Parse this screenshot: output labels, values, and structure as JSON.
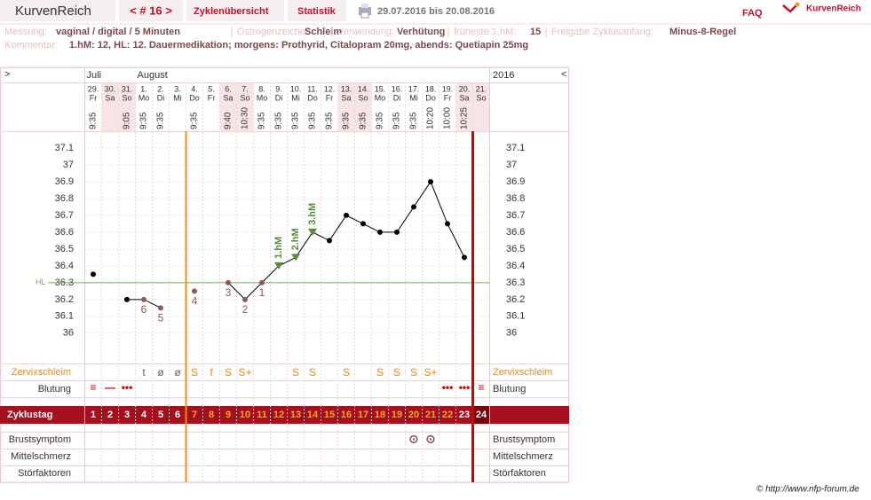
{
  "header": {
    "brand": "KurvenReich",
    "cycle_nav": "< # 16 >",
    "tabs": [
      "Zyklenübersicht",
      "Statistik"
    ],
    "date_range": "29.07.2016 bis 20.08.2016",
    "faq": "FAQ",
    "logo": "KurvenReich"
  },
  "info": {
    "items": [
      {
        "label": "Messung:",
        "value": "vaginal / digital / 5 Minuten"
      },
      {
        "label": "Östrogenzeichen:",
        "value": "Schleim"
      },
      {
        "label": "Verwendung:",
        "value": "Verhütung"
      },
      {
        "label": "früheste 1.hM:",
        "value": "15"
      },
      {
        "label": "Freigabe Zyklusanfang:",
        "value": "Minus-8-Regel"
      }
    ],
    "comment_label": "Kommentar:",
    "comment": "1.hM: 12, HL: 12. Dauermedikation; morgens: Prothyrid, Citalopram 20mg, abends: Quetiapin 25mg"
  },
  "chart_data": {
    "type": "line",
    "nav_left": ">",
    "nav_right": "<",
    "year_label": "2016",
    "month_labels": [
      "Juli",
      null,
      null,
      "August",
      null,
      null,
      null,
      null,
      null,
      null,
      null,
      null,
      null,
      null,
      null,
      null,
      null,
      null,
      null,
      null,
      null,
      null,
      null,
      null
    ],
    "categories": [
      "29.",
      "30.",
      "31.",
      "1.",
      "2.",
      "3.",
      "4.",
      "5.",
      "6.",
      "7.",
      "8.",
      "9.",
      "10.",
      "11.",
      "12.",
      "13.",
      "14.",
      "15.",
      "16.",
      "17.",
      "18.",
      "19.",
      "20.",
      "21."
    ],
    "weekdays": [
      "Fr",
      "Sa",
      "So",
      "Mo",
      "Di",
      "Mi",
      "Do",
      "Fr",
      "Sa",
      "So",
      "Mo",
      "Di",
      "Mi",
      "Do",
      "Fr",
      "Sa",
      "So",
      "Mo",
      "Di",
      "Mi",
      "Do",
      "Fr",
      "Sa",
      "So"
    ],
    "weekend": [
      false,
      true,
      true,
      false,
      false,
      false,
      false,
      false,
      true,
      true,
      false,
      false,
      false,
      false,
      false,
      true,
      true,
      false,
      false,
      false,
      false,
      false,
      true,
      true
    ],
    "times": [
      "9:35",
      null,
      "9:05",
      "9:35",
      "9:35",
      null,
      "9:35",
      null,
      "9:40",
      "10:30",
      "9:35",
      "9:35",
      "9:35",
      "9:35",
      "9:35",
      "9:35",
      "9:35",
      "9:35",
      "9:35",
      "9:35",
      "10:20",
      "10:00",
      "10:25",
      null
    ],
    "values": [
      36.35,
      null,
      36.2,
      36.2,
      36.15,
      null,
      36.25,
      null,
      36.3,
      36.2,
      36.3,
      36.4,
      36.45,
      36.6,
      36.55,
      36.7,
      36.65,
      36.6,
      36.6,
      36.75,
      36.9,
      36.65,
      36.45,
      null
    ],
    "color": "#000000",
    "marker_colors": [
      "#000000",
      null,
      "#000000",
      "#8b5a5a",
      "#8b5a5a",
      null,
      "#8b5a5a",
      null,
      "#8b5a5a",
      "#8b5a5a",
      "#8b5a5a",
      "#5a8a3a",
      "#5a8a3a",
      "#5a8a3a",
      "#000000",
      "#000000",
      "#000000",
      "#000000",
      "#000000",
      "#000000",
      "#000000",
      "#000000",
      "#000000",
      null
    ],
    "marker_shapes": [
      "circle",
      null,
      "circle",
      "circle",
      "circle",
      null,
      "circle",
      null,
      "circle",
      "circle",
      "circle",
      "triangle",
      "triangle",
      "triangle",
      "circle",
      "circle",
      "circle",
      "circle",
      "circle",
      "circle",
      "circle",
      "circle",
      "circle",
      null
    ],
    "point_labels": [
      null,
      null,
      null,
      "6",
      "5",
      null,
      "4",
      null,
      "3",
      "2",
      "1",
      "1.hM",
      "2.hM",
      "3.hM",
      null,
      null,
      null,
      null,
      null,
      null,
      null,
      null,
      null,
      null
    ],
    "ylim": [
      35.82,
      37.2
    ],
    "yticks": [
      36,
      36.1,
      36.2,
      36.3,
      36.4,
      36.5,
      36.6,
      36.7,
      36.8,
      36.9,
      37,
      37.1
    ],
    "grid": true,
    "hl": {
      "label": "HL",
      "value": 36.3,
      "color": "#7aa84a"
    },
    "vlines": [
      {
        "after": 5,
        "color": "#f0900a"
      },
      {
        "after": 22,
        "color": "#d40000"
      }
    ],
    "cervix": {
      "label": "Zervixschleim",
      "values": [
        null,
        null,
        null,
        "t",
        "ø",
        "ø",
        "S",
        "f",
        "S",
        "S+",
        null,
        null,
        "S",
        "S",
        null,
        "S",
        null,
        "S",
        "S",
        "S",
        "S+",
        null,
        null,
        null
      ]
    },
    "bleeding": {
      "label": "Blutung",
      "values": [
        "≡",
        "—",
        "•••",
        null,
        null,
        null,
        null,
        null,
        null,
        null,
        null,
        null,
        null,
        null,
        null,
        null,
        null,
        null,
        null,
        null,
        null,
        "•••",
        "•••",
        "≡"
      ]
    },
    "cycle_day": {
      "label": "Zyklustag",
      "values": [
        1,
        2,
        3,
        4,
        5,
        6,
        7,
        8,
        9,
        10,
        11,
        12,
        13,
        14,
        15,
        16,
        17,
        18,
        19,
        20,
        21,
        22,
        23,
        24
      ],
      "colors": [
        "#ffffff",
        "#ffffff",
        "#ffffff",
        "#ffffff",
        "#ffffff",
        "#ffffff",
        "#f5a623",
        "#f5a623",
        "#f5a623",
        "#f5a623",
        "#f5a623",
        "#f5a623",
        "#f5a623",
        "#f5a623",
        "#f5a623",
        "#f5a623",
        "#f5a623",
        "#f5a623",
        "#f5a623",
        "#f5a623",
        "#f5a623",
        "#f5a623",
        "#ffffff",
        "#ffffff"
      ]
    },
    "symptoms": [
      {
        "label": "Brustsymptom",
        "values": [
          null,
          null,
          null,
          null,
          null,
          null,
          null,
          null,
          null,
          null,
          null,
          null,
          null,
          null,
          null,
          null,
          null,
          null,
          null,
          "⊙",
          "⊙",
          null,
          null,
          null
        ]
      },
      {
        "label": "Mittelschmerz",
        "values": [
          null,
          null,
          null,
          null,
          null,
          null,
          null,
          null,
          null,
          null,
          null,
          null,
          null,
          null,
          null,
          null,
          null,
          null,
          null,
          null,
          null,
          null,
          null,
          null
        ]
      },
      {
        "label": "Störfaktoren",
        "values": [
          null,
          null,
          null,
          null,
          null,
          null,
          null,
          null,
          null,
          null,
          null,
          null,
          null,
          null,
          null,
          null,
          null,
          null,
          null,
          null,
          null,
          null,
          null,
          null
        ]
      }
    ]
  },
  "footer": {
    "copyright": "© http://www.nfp-forum.de"
  }
}
